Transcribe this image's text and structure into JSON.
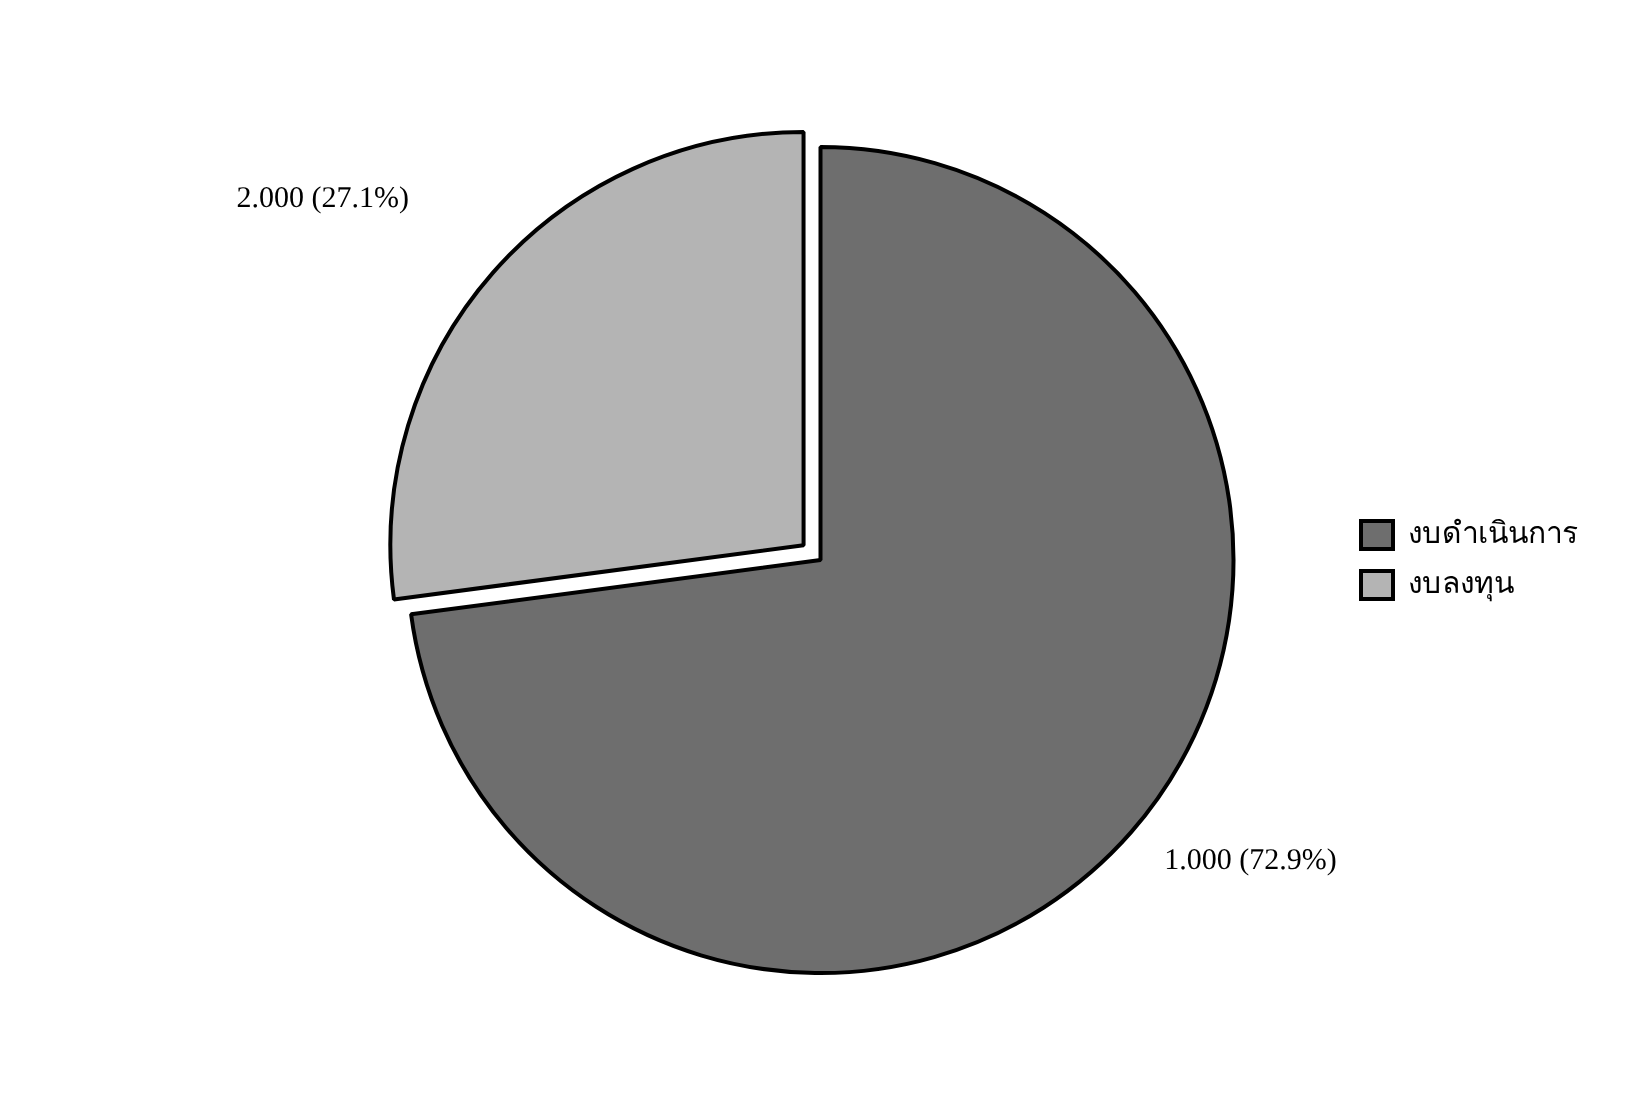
{
  "chart_data": {
    "type": "pie",
    "categories": [
      "งบดำเนินการ",
      "งบลงทุน"
    ],
    "values": [
      72.9,
      27.1
    ],
    "colors": [
      "#6e6e6e",
      "#b4b4b4"
    ],
    "value_labels": [
      "1.000 (72.9%)",
      "2.000 (27.1%)"
    ],
    "legend": "right"
  }
}
